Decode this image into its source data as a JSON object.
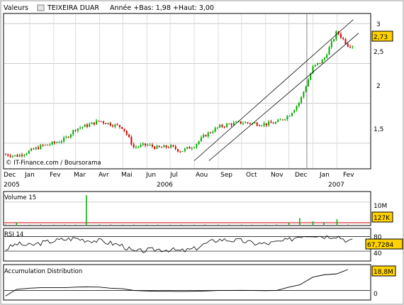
{
  "header": {
    "menu_label": "Valeurs",
    "stock_name": "TEIXEIRA DUAR",
    "stats": "Année +Bas: 1,98 +Haut: 3,00"
  },
  "price_panel": {
    "credit": "© IT-Finance.com / Boursorama",
    "last_value_label": "2,73",
    "y_tick_labels": [
      "3",
      "2,5",
      "2",
      "1,5"
    ],
    "month_labels": [
      "Dec",
      "Jan",
      "Fev",
      "Mar",
      "Avr",
      "Mai",
      "Jun",
      "Jul",
      "Aou",
      "Sep",
      "Oct",
      "Nov",
      "Dec",
      "Jan",
      "Fev"
    ],
    "year_labels": [
      "2005",
      "2006",
      "2007"
    ]
  },
  "volume_panel": {
    "title": "Volume 15",
    "tick_label": "10M",
    "last_value_label": "127K"
  },
  "rsi_panel": {
    "title": "RSI 14",
    "tick_labels": [
      "80",
      "40"
    ],
    "last_value_label": "67,7284"
  },
  "ad_panel": {
    "title": "Accumulation Distribution",
    "tick_label": "0",
    "last_value_label": "18,8M"
  },
  "colors": {
    "up": "#00aa00",
    "down": "#cc0000",
    "label_bg": "#ffd200",
    "frame": "#000000",
    "grid": "#bbbbbb"
  },
  "chart_data": [
    {
      "type": "candlestick",
      "title": "TEIXEIRA DUAR",
      "ylim": [
        1.25,
        3.1
      ],
      "x": [
        "2005-12-01",
        "2005-12-15",
        "2006-01-01",
        "2006-01-15",
        "2006-02-01",
        "2006-02-15",
        "2006-03-01",
        "2006-03-15",
        "2006-04-01",
        "2006-04-15",
        "2006-05-01",
        "2006-05-15",
        "2006-06-01",
        "2006-06-15",
        "2006-07-01",
        "2006-07-15",
        "2006-08-01",
        "2006-08-15",
        "2006-09-01",
        "2006-09-15",
        "2006-10-01",
        "2006-10-15",
        "2006-11-01",
        "2006-11-15",
        "2006-12-01",
        "2006-12-15",
        "2007-01-01",
        "2007-01-15",
        "2007-02-01",
        "2007-02-15"
      ],
      "close": [
        1.36,
        1.34,
        1.4,
        1.46,
        1.5,
        1.55,
        1.68,
        1.72,
        1.78,
        1.74,
        1.7,
        1.45,
        1.48,
        1.44,
        1.46,
        1.4,
        1.47,
        1.6,
        1.7,
        1.74,
        1.76,
        1.75,
        1.74,
        1.76,
        1.85,
        2.02,
        2.45,
        2.55,
        2.9,
        2.73
      ],
      "trend_lines": [
        {
          "x": [
            "2006-08-01",
            "2007-02-22"
          ],
          "y": [
            1.28,
            3.05
          ]
        },
        {
          "x": [
            "2006-08-20",
            "2007-03-01"
          ],
          "y": [
            1.28,
            2.88
          ]
        }
      ]
    },
    {
      "type": "bar",
      "name": "Volume 15",
      "ylim": [
        0,
        14000000
      ],
      "values": [
        200000,
        900000,
        100000,
        150000,
        120000,
        100000,
        150000,
        13000000,
        200000,
        150000,
        100000,
        120000,
        100000,
        100000,
        100000,
        100000,
        120000,
        150000,
        150000,
        120000,
        150000,
        100000,
        120000,
        150000,
        900000,
        3000000,
        1500000,
        1200000,
        2500000,
        127000
      ]
    },
    {
      "type": "line",
      "name": "RSI 14",
      "ylim": [
        15,
        100
      ],
      "values": [
        45,
        60,
        55,
        62,
        68,
        72,
        75,
        70,
        68,
        62,
        55,
        38,
        42,
        45,
        44,
        40,
        46,
        60,
        72,
        70,
        68,
        62,
        60,
        64,
        70,
        82,
        85,
        80,
        82,
        67.7284
      ]
    },
    {
      "type": "line",
      "name": "Accumulation Distribution",
      "ylim": [
        -8000000,
        22000000
      ],
      "values": [
        -5000000,
        1000000,
        2000000,
        2500000,
        2500000,
        2500000,
        3000000,
        3200000,
        3000000,
        2000000,
        1500000,
        0,
        -500000,
        -800000,
        -800000,
        -900000,
        -800000,
        -500000,
        0,
        0,
        100000,
        0,
        -200000,
        0,
        3000000,
        5000000,
        12000000,
        14000000,
        15000000,
        18800000
      ]
    }
  ]
}
